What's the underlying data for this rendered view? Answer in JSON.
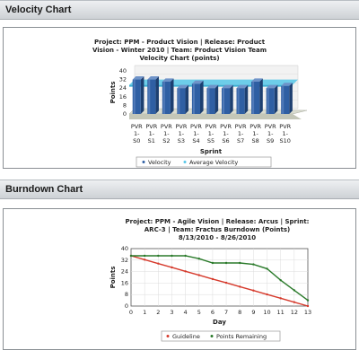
{
  "velocity_section": {
    "header": "Velocity Chart"
  },
  "burndown_section": {
    "header": "Burndown Chart"
  },
  "colors": {
    "velocity_bar": "#2f5fa3",
    "average_velocity": "#56c7e8",
    "guideline": "#d63a2c",
    "points_remaining": "#2a7a2a"
  },
  "chart_data": [
    {
      "type": "bar",
      "title_lines": [
        "Project: PPM - Product Vision | Release: Product",
        "Vision - Winter 2010 | Team: Product Vision Team",
        "Velocity Chart (points)"
      ],
      "categories": [
        [
          "PVR",
          "1-",
          "S0"
        ],
        [
          "PVR",
          "1-",
          "S1"
        ],
        [
          "PVR",
          "1-",
          "S2"
        ],
        [
          "PVR",
          "1-",
          "S3"
        ],
        [
          "PVR",
          "1-",
          "S4"
        ],
        [
          "PVR",
          "1-",
          "S5"
        ],
        [
          "PVR",
          "1-",
          "S6"
        ],
        [
          "PVR",
          "1-",
          "S7"
        ],
        [
          "PVR",
          "1-",
          "S8"
        ],
        [
          "PVR",
          "1-",
          "S9"
        ],
        [
          "PVR",
          "1-",
          "S10"
        ]
      ],
      "series": [
        {
          "name": "Velocity",
          "values": [
            32,
            32,
            30,
            24,
            28,
            24,
            24,
            24,
            30,
            24,
            26
          ]
        },
        {
          "name": "Average Velocity",
          "values": [
            27,
            27,
            27,
            27,
            27,
            27,
            27,
            27,
            27,
            27,
            27
          ]
        }
      ],
      "xlabel": "Sprint",
      "ylabel": "Points",
      "yticks": [
        0,
        8,
        16,
        24,
        32,
        40
      ],
      "ylim": [
        0,
        40
      ],
      "legend_position": "bottom"
    },
    {
      "type": "line",
      "title_lines": [
        "Project: PPM - Agile Vision | Release: Arcus | Sprint:",
        "ARC-3 | Team: Fractus Burndown (Points)",
        "8/13/2010 - 8/26/2010"
      ],
      "x": [
        0,
        1,
        2,
        3,
        4,
        5,
        6,
        7,
        8,
        9,
        10,
        11,
        12,
        13
      ],
      "series": [
        {
          "name": "Guideline",
          "values": [
            35,
            32.3,
            29.6,
            26.9,
            24.2,
            21.5,
            18.8,
            16.2,
            13.5,
            10.8,
            8.1,
            5.4,
            2.7,
            0
          ]
        },
        {
          "name": "Points Remaining",
          "values": [
            35,
            35,
            35,
            35,
            35,
            33,
            30,
            30,
            30,
            29,
            26,
            18,
            11,
            4
          ]
        }
      ],
      "xlabel": "Day",
      "ylabel": "Points",
      "yticks": [
        0,
        8,
        16,
        24,
        32,
        40
      ],
      "ylim": [
        0,
        40
      ],
      "xlim": [
        0,
        13
      ],
      "grid": true,
      "legend_position": "bottom"
    }
  ]
}
